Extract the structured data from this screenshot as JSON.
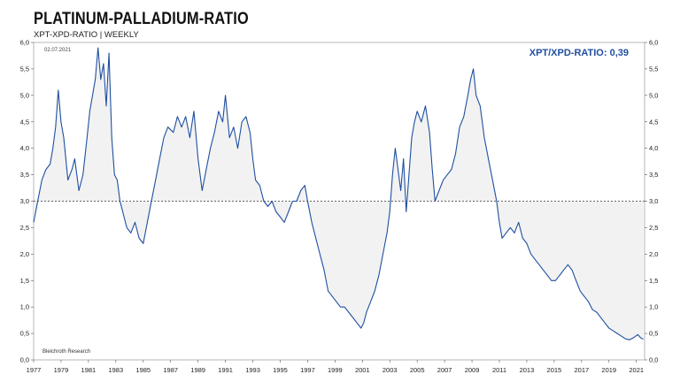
{
  "header": {
    "title": "PLATINUM-PALLADIUM-RATIO",
    "subtitle": "XPT-XPD-RATIO | WEEKLY",
    "date": "02.07.2021",
    "current_value_label": "XPT/XPD-RATIO: 0,39",
    "source": "Bleichroth Research"
  },
  "colors": {
    "line": "#1f4fa0",
    "fill": "#f2f2f2",
    "accent": "#1f4fa0"
  },
  "chart_data": {
    "type": "line",
    "title": "PLATINUM-PALLADIUM-RATIO",
    "subtitle": "XPT-XPD-RATIO | WEEKLY",
    "xlabel": "",
    "ylabel": "",
    "xlim": [
      1977,
      2021.6
    ],
    "ylim": [
      0,
      6
    ],
    "grid": false,
    "reference_line": 3.0,
    "x_ticks": [
      "1977",
      "1979",
      "1981",
      "1983",
      "1985",
      "1987",
      "1989",
      "1991",
      "1993",
      "1995",
      "1997",
      "1999",
      "2001",
      "2003",
      "2005",
      "2007",
      "2009",
      "2011",
      "2013",
      "2015",
      "2017",
      "2019",
      "2021"
    ],
    "y_ticks": [
      "0,0",
      "0,5",
      "1,0",
      "1,5",
      "2,0",
      "2,5",
      "3,0",
      "3,5",
      "4,0",
      "4,5",
      "5,0",
      "5,5",
      "6,0"
    ],
    "series": [
      {
        "values": [
          [
            1977.0,
            2.6
          ],
          [
            1977.3,
            3.0
          ],
          [
            1977.6,
            3.4
          ],
          [
            1977.9,
            3.6
          ],
          [
            1978.2,
            3.7
          ],
          [
            1978.4,
            4.0
          ],
          [
            1978.6,
            4.4
          ],
          [
            1978.8,
            5.1
          ],
          [
            1979.0,
            4.5
          ],
          [
            1979.2,
            4.2
          ],
          [
            1979.5,
            3.4
          ],
          [
            1979.8,
            3.6
          ],
          [
            1980.0,
            3.8
          ],
          [
            1980.3,
            3.2
          ],
          [
            1980.6,
            3.5
          ],
          [
            1980.9,
            4.2
          ],
          [
            1981.1,
            4.7
          ],
          [
            1981.3,
            5.0
          ],
          [
            1981.5,
            5.3
          ],
          [
            1981.7,
            5.9
          ],
          [
            1981.9,
            5.3
          ],
          [
            1982.1,
            5.6
          ],
          [
            1982.3,
            4.8
          ],
          [
            1982.5,
            5.8
          ],
          [
            1982.7,
            4.2
          ],
          [
            1982.9,
            3.5
          ],
          [
            1983.1,
            3.4
          ],
          [
            1983.3,
            3.0
          ],
          [
            1983.5,
            2.8
          ],
          [
            1983.8,
            2.5
          ],
          [
            1984.1,
            2.4
          ],
          [
            1984.4,
            2.6
          ],
          [
            1984.7,
            2.3
          ],
          [
            1985.0,
            2.2
          ],
          [
            1985.3,
            2.6
          ],
          [
            1985.6,
            3.0
          ],
          [
            1985.9,
            3.4
          ],
          [
            1986.2,
            3.8
          ],
          [
            1986.5,
            4.2
          ],
          [
            1986.8,
            4.4
          ],
          [
            1987.2,
            4.3
          ],
          [
            1987.5,
            4.6
          ],
          [
            1987.8,
            4.4
          ],
          [
            1988.1,
            4.6
          ],
          [
            1988.4,
            4.2
          ],
          [
            1988.7,
            4.7
          ],
          [
            1989.0,
            3.8
          ],
          [
            1989.3,
            3.2
          ],
          [
            1989.6,
            3.6
          ],
          [
            1989.9,
            4.0
          ],
          [
            1990.2,
            4.3
          ],
          [
            1990.5,
            4.7
          ],
          [
            1990.8,
            4.5
          ],
          [
            1991.0,
            5.0
          ],
          [
            1991.3,
            4.2
          ],
          [
            1991.6,
            4.4
          ],
          [
            1991.9,
            4.0
          ],
          [
            1992.2,
            4.5
          ],
          [
            1992.5,
            4.6
          ],
          [
            1992.8,
            4.3
          ],
          [
            1993.0,
            3.8
          ],
          [
            1993.2,
            3.4
          ],
          [
            1993.5,
            3.3
          ],
          [
            1993.8,
            3.0
          ],
          [
            1994.1,
            2.9
          ],
          [
            1994.4,
            3.0
          ],
          [
            1994.7,
            2.8
          ],
          [
            1995.0,
            2.7
          ],
          [
            1995.3,
            2.6
          ],
          [
            1995.6,
            2.8
          ],
          [
            1995.9,
            3.0
          ],
          [
            1996.2,
            3.0
          ],
          [
            1996.5,
            3.2
          ],
          [
            1996.8,
            3.3
          ],
          [
            1997.0,
            3.0
          ],
          [
            1997.3,
            2.6
          ],
          [
            1997.6,
            2.3
          ],
          [
            1997.9,
            2.0
          ],
          [
            1998.2,
            1.7
          ],
          [
            1998.5,
            1.3
          ],
          [
            1998.8,
            1.2
          ],
          [
            1999.1,
            1.1
          ],
          [
            1999.4,
            1.0
          ],
          [
            1999.7,
            1.0
          ],
          [
            2000.0,
            0.9
          ],
          [
            2000.3,
            0.8
          ],
          [
            2000.6,
            0.7
          ],
          [
            2000.9,
            0.6
          ],
          [
            2001.1,
            0.7
          ],
          [
            2001.3,
            0.9
          ],
          [
            2001.6,
            1.1
          ],
          [
            2001.9,
            1.3
          ],
          [
            2002.2,
            1.6
          ],
          [
            2002.5,
            2.0
          ],
          [
            2002.8,
            2.4
          ],
          [
            2003.0,
            2.8
          ],
          [
            2003.2,
            3.5
          ],
          [
            2003.4,
            4.0
          ],
          [
            2003.6,
            3.6
          ],
          [
            2003.8,
            3.2
          ],
          [
            2004.0,
            3.8
          ],
          [
            2004.2,
            2.8
          ],
          [
            2004.4,
            3.5
          ],
          [
            2004.6,
            4.2
          ],
          [
            2004.8,
            4.5
          ],
          [
            2005.0,
            4.7
          ],
          [
            2005.3,
            4.5
          ],
          [
            2005.6,
            4.8
          ],
          [
            2005.9,
            4.3
          ],
          [
            2006.1,
            3.6
          ],
          [
            2006.3,
            3.0
          ],
          [
            2006.6,
            3.2
          ],
          [
            2006.9,
            3.4
          ],
          [
            2007.2,
            3.5
          ],
          [
            2007.5,
            3.6
          ],
          [
            2007.8,
            3.9
          ],
          [
            2008.1,
            4.4
          ],
          [
            2008.4,
            4.6
          ],
          [
            2008.7,
            5.0
          ],
          [
            2008.9,
            5.3
          ],
          [
            2009.1,
            5.5
          ],
          [
            2009.3,
            5.0
          ],
          [
            2009.6,
            4.8
          ],
          [
            2009.9,
            4.2
          ],
          [
            2010.2,
            3.8
          ],
          [
            2010.5,
            3.4
          ],
          [
            2010.8,
            3.0
          ],
          [
            2011.0,
            2.6
          ],
          [
            2011.2,
            2.3
          ],
          [
            2011.5,
            2.4
          ],
          [
            2011.8,
            2.5
          ],
          [
            2012.1,
            2.4
          ],
          [
            2012.4,
            2.6
          ],
          [
            2012.7,
            2.3
          ],
          [
            2013.0,
            2.2
          ],
          [
            2013.3,
            2.0
          ],
          [
            2013.6,
            1.9
          ],
          [
            2013.9,
            1.8
          ],
          [
            2014.2,
            1.7
          ],
          [
            2014.5,
            1.6
          ],
          [
            2014.8,
            1.5
          ],
          [
            2015.1,
            1.5
          ],
          [
            2015.4,
            1.6
          ],
          [
            2015.7,
            1.7
          ],
          [
            2016.0,
            1.8
          ],
          [
            2016.3,
            1.7
          ],
          [
            2016.6,
            1.5
          ],
          [
            2016.9,
            1.3
          ],
          [
            2017.2,
            1.2
          ],
          [
            2017.5,
            1.1
          ],
          [
            2017.8,
            0.95
          ],
          [
            2018.1,
            0.9
          ],
          [
            2018.4,
            0.8
          ],
          [
            2018.7,
            0.7
          ],
          [
            2019.0,
            0.6
          ],
          [
            2019.3,
            0.55
          ],
          [
            2019.6,
            0.5
          ],
          [
            2019.9,
            0.45
          ],
          [
            2020.2,
            0.4
          ],
          [
            2020.5,
            0.38
          ],
          [
            2020.8,
            0.42
          ],
          [
            2021.1,
            0.48
          ],
          [
            2021.3,
            0.42
          ],
          [
            2021.5,
            0.39
          ]
        ]
      }
    ]
  }
}
